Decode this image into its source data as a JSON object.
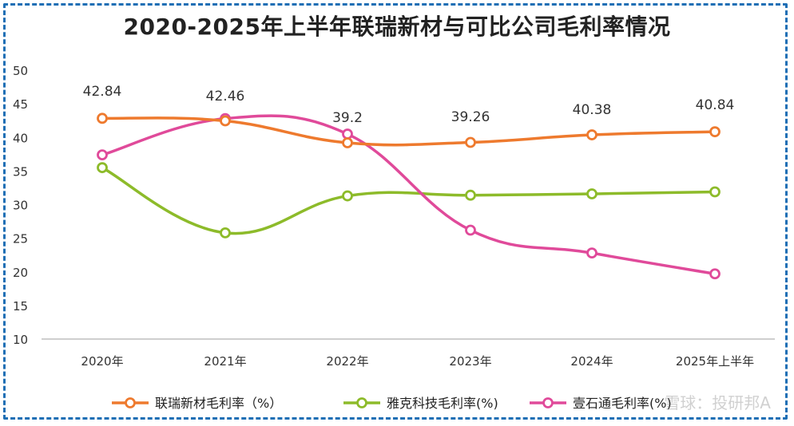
{
  "title": "2020-2025年上半年联瑞新材与可比公司毛利率情况",
  "watermark": "雪球：投研邦A",
  "chart_data": {
    "type": "line",
    "title": "2020-2025年上半年联瑞新材与可比公司毛利率情况",
    "categories": [
      "2020年",
      "2021年",
      "2022年",
      "2023年",
      "2024年",
      "2025年上半年"
    ],
    "ylim": [
      10,
      50
    ],
    "yticks": [
      10,
      15,
      20,
      25,
      30,
      35,
      40,
      45,
      50
    ],
    "grid": false,
    "legend_position": "bottom",
    "series": [
      {
        "name": "联瑞新材毛利率（%）",
        "color": "#ee7a2e",
        "values": [
          42.84,
          42.46,
          39.2,
          39.26,
          40.38,
          40.84
        ],
        "labels": [
          "42.84",
          "42.46",
          "39.2",
          "39.26",
          "40.38",
          "40.84"
        ]
      },
      {
        "name": "雅克科技毛利率(%)",
        "color": "#8dbb2a",
        "values": [
          35.5,
          25.8,
          31.3,
          31.4,
          31.6,
          31.9
        ]
      },
      {
        "name": "壹石通毛利率(%)",
        "color": "#e04a9a",
        "values": [
          37.4,
          42.8,
          40.5,
          26.2,
          22.8,
          19.7
        ]
      }
    ]
  }
}
